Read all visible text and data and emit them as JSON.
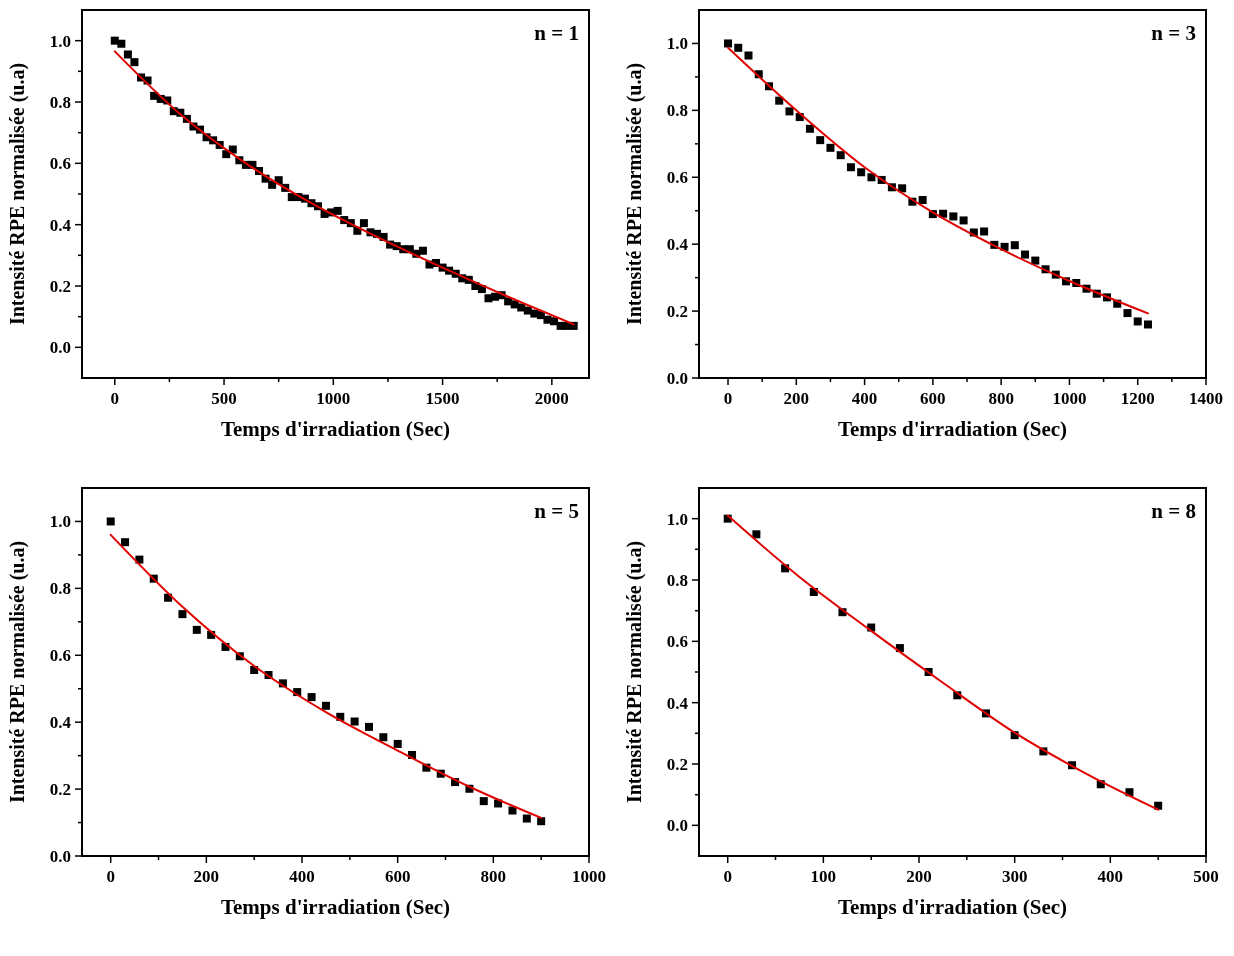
{
  "chart_data": [
    {
      "type": "scatter",
      "xlabel": "Temps d'irradiation (Sec)",
      "ylabel": "Intensité RPE normalisée (u.a)",
      "annotations": [
        "n = 1"
      ],
      "marker": "square",
      "xlim": [
        -150,
        2170
      ],
      "ylim": [
        -0.1,
        1.1
      ],
      "xticks": [
        0,
        {
          "value": 250,
          "label": null
        },
        500,
        {
          "value": 750,
          "label": null
        },
        1000,
        {
          "value": 1250,
          "label": null
        },
        1500,
        {
          "value": 1750,
          "label": null
        },
        2000
      ],
      "yticks": [
        {
          "value": 0,
          "label": "0.0"
        },
        {
          "value": 0.1,
          "label": null
        },
        {
          "value": 0.2,
          "label": "0.2"
        },
        {
          "value": 0.3,
          "label": null
        },
        {
          "value": 0.4,
          "label": "0.4"
        },
        {
          "value": 0.5,
          "label": null
        },
        {
          "value": 0.6,
          "label": "0.6"
        },
        {
          "value": 0.7,
          "label": null
        },
        {
          "value": 0.8,
          "label": "0.8"
        },
        {
          "value": 0.9,
          "label": null
        },
        {
          "value": 1,
          "label": "1.0"
        }
      ],
      "x": [
        0,
        30,
        60,
        90,
        120,
        150,
        180,
        210,
        240,
        270,
        300,
        330,
        360,
        390,
        420,
        450,
        480,
        510,
        540,
        570,
        600,
        630,
        660,
        690,
        720,
        750,
        780,
        810,
        840,
        870,
        900,
        930,
        960,
        990,
        1020,
        1050,
        1080,
        1110,
        1140,
        1170,
        1200,
        1230,
        1260,
        1290,
        1320,
        1350,
        1380,
        1410,
        1440,
        1470,
        1500,
        1530,
        1560,
        1590,
        1620,
        1650,
        1680,
        1710,
        1740,
        1770,
        1800,
        1830,
        1860,
        1890,
        1920,
        1950,
        1980,
        2010,
        2040,
        2070,
        2100
      ],
      "series": [
        {
          "color": "#000000",
          "values": [
            1.0,
            0.99,
            0.955,
            0.93,
            0.88,
            0.87,
            0.82,
            0.81,
            0.805,
            0.77,
            0.765,
            0.745,
            0.72,
            0.71,
            0.685,
            0.675,
            0.66,
            0.63,
            0.645,
            0.61,
            0.595,
            0.595,
            0.575,
            0.55,
            0.53,
            0.545,
            0.52,
            0.49,
            0.49,
            0.485,
            0.47,
            0.46,
            0.435,
            0.44,
            0.445,
            0.415,
            0.405,
            0.38,
            0.405,
            0.375,
            0.37,
            0.36,
            0.335,
            0.33,
            0.32,
            0.32,
            0.305,
            0.315,
            0.27,
            0.275,
            0.26,
            0.25,
            0.24,
            0.225,
            0.22,
            0.2,
            0.19,
            0.16,
            0.165,
            0.17,
            0.15,
            0.14,
            0.13,
            0.12,
            0.11,
            0.105,
            0.09,
            0.085,
            0.07,
            0.07,
            0.07
          ]
        },
        {
          "type": "line",
          "marker": "none",
          "color": "#e00000",
          "x": [
            0,
            300,
            600,
            900,
            1200,
            1500,
            1800,
            2100
          ],
          "values": [
            0.965,
            0.76,
            0.6,
            0.47,
            0.36,
            0.26,
            0.165,
            0.075
          ]
        }
      ]
    },
    {
      "type": "scatter",
      "xlabel": "Temps d'irradiation (Sec)",
      "ylabel": "Intensité RPE normalisée (u.a)",
      "annotations": [
        "n = 3"
      ],
      "marker": "square",
      "xlim": [
        -85,
        1400
      ],
      "ylim": [
        0,
        1.1
      ],
      "xticks": [
        0,
        {
          "value": 100,
          "label": null
        },
        200,
        {
          "value": 300,
          "label": null
        },
        400,
        {
          "value": 500,
          "label": null
        },
        600,
        {
          "value": 700,
          "label": null
        },
        800,
        {
          "value": 900,
          "label": null
        },
        1000,
        {
          "value": 1100,
          "label": null
        },
        1200,
        {
          "value": 1300,
          "label": null
        },
        1400
      ],
      "yticks": [
        {
          "value": 0,
          "label": "0.0"
        },
        {
          "value": 0.1,
          "label": null
        },
        {
          "value": 0.2,
          "label": "0.2"
        },
        {
          "value": 0.3,
          "label": null
        },
        {
          "value": 0.4,
          "label": "0.4"
        },
        {
          "value": 0.5,
          "label": null
        },
        {
          "value": 0.6,
          "label": "0.6"
        },
        {
          "value": 0.7,
          "label": null
        },
        {
          "value": 0.8,
          "label": "0.8"
        },
        {
          "value": 0.9,
          "label": null
        },
        {
          "value": 1,
          "label": "1.0"
        }
      ],
      "x": [
        0,
        30,
        60,
        90,
        120,
        150,
        180,
        210,
        240,
        270,
        300,
        330,
        360,
        390,
        420,
        450,
        480,
        510,
        540,
        570,
        600,
        630,
        660,
        690,
        720,
        750,
        780,
        810,
        840,
        870,
        900,
        930,
        960,
        990,
        1020,
        1050,
        1080,
        1110,
        1140,
        1170,
        1200,
        1230
      ],
      "series": [
        {
          "color": "#000000",
          "values": [
            1.0,
            0.987,
            0.964,
            0.908,
            0.872,
            0.829,
            0.797,
            0.78,
            0.745,
            0.711,
            0.688,
            0.666,
            0.63,
            0.615,
            0.6,
            0.592,
            0.57,
            0.567,
            0.527,
            0.532,
            0.49,
            0.491,
            0.483,
            0.471,
            0.435,
            0.438,
            0.398,
            0.392,
            0.397,
            0.369,
            0.351,
            0.325,
            0.309,
            0.289,
            0.284,
            0.267,
            0.252,
            0.241,
            0.222,
            0.194,
            0.169,
            0.16
          ]
        },
        {
          "type": "line",
          "marker": "none",
          "color": "#e00000",
          "x": [
            0,
            200,
            400,
            600,
            800,
            1000,
            1230
          ],
          "values": [
            0.987,
            0.8,
            0.63,
            0.495,
            0.385,
            0.29,
            0.193
          ]
        }
      ]
    },
    {
      "type": "scatter",
      "xlabel": "Temps d'irradiation (Sec)",
      "ylabel": "Intensité RPE normalisée (u.a)",
      "annotations": [
        "n = 5"
      ],
      "marker": "square",
      "xlim": [
        -60,
        1000
      ],
      "ylim": [
        0,
        1.1
      ],
      "xticks": [
        0,
        {
          "value": 100,
          "label": null
        },
        200,
        {
          "value": 300,
          "label": null
        },
        400,
        {
          "value": 500,
          "label": null
        },
        600,
        {
          "value": 700,
          "label": null
        },
        800,
        {
          "value": 900,
          "label": null
        },
        1000
      ],
      "yticks": [
        {
          "value": 0,
          "label": "0.0"
        },
        {
          "value": 0.1,
          "label": null
        },
        {
          "value": 0.2,
          "label": "0.2"
        },
        {
          "value": 0.3,
          "label": null
        },
        {
          "value": 0.4,
          "label": "0.4"
        },
        {
          "value": 0.5,
          "label": null
        },
        {
          "value": 0.6,
          "label": "0.6"
        },
        {
          "value": 0.7,
          "label": null
        },
        {
          "value": 0.8,
          "label": "0.8"
        },
        {
          "value": 0.9,
          "label": null
        },
        {
          "value": 1,
          "label": "1.0"
        }
      ],
      "x": [
        0,
        30,
        60,
        90,
        120,
        150,
        180,
        210,
        240,
        270,
        300,
        330,
        360,
        390,
        420,
        450,
        480,
        510,
        540,
        570,
        600,
        630,
        660,
        690,
        720,
        750,
        780,
        810,
        840,
        870,
        900
      ],
      "series": [
        {
          "color": "#000000",
          "values": [
            1.0,
            0.938,
            0.886,
            0.829,
            0.772,
            0.723,
            0.676,
            0.661,
            0.625,
            0.597,
            0.556,
            0.541,
            0.516,
            0.49,
            0.475,
            0.449,
            0.416,
            0.402,
            0.386,
            0.355,
            0.335,
            0.302,
            0.264,
            0.246,
            0.221,
            0.201,
            0.164,
            0.157,
            0.136,
            0.112,
            0.104
          ]
        },
        {
          "type": "line",
          "marker": "none",
          "color": "#e00000",
          "x": [
            0,
            150,
            300,
            450,
            600,
            750,
            900
          ],
          "values": [
            0.96,
            0.745,
            0.568,
            0.43,
            0.315,
            0.207,
            0.114
          ]
        }
      ]
    },
    {
      "type": "scatter",
      "xlabel": "Temps d'irradiation (Sec)",
      "ylabel": "Intensité RPE normalisée (u.a)",
      "annotations": [
        "n = 8"
      ],
      "marker": "square",
      "xlim": [
        -30,
        500
      ],
      "ylim": [
        -0.1,
        1.1
      ],
      "xticks": [
        0,
        {
          "value": 50,
          "label": null
        },
        100,
        {
          "value": 150,
          "label": null
        },
        200,
        {
          "value": 250,
          "label": null
        },
        300,
        {
          "value": 350,
          "label": null
        },
        400,
        {
          "value": 450,
          "label": null
        },
        500
      ],
      "yticks": [
        {
          "value": 0,
          "label": "0.0"
        },
        {
          "value": 0.1,
          "label": null
        },
        {
          "value": 0.2,
          "label": "0.2"
        },
        {
          "value": 0.3,
          "label": null
        },
        {
          "value": 0.4,
          "label": "0.4"
        },
        {
          "value": 0.5,
          "label": null
        },
        {
          "value": 0.6,
          "label": "0.6"
        },
        {
          "value": 0.7,
          "label": null
        },
        {
          "value": 0.8,
          "label": "0.8"
        },
        {
          "value": 0.9,
          "label": null
        },
        {
          "value": 1,
          "label": "1.0"
        }
      ],
      "x": [
        0,
        30,
        60,
        90,
        120,
        150,
        180,
        210,
        240,
        270,
        300,
        330,
        360,
        390,
        420,
        450
      ],
      "series": [
        {
          "color": "#000000",
          "values": [
            1.0,
            0.949,
            0.838,
            0.761,
            0.695,
            0.645,
            0.578,
            0.5,
            0.424,
            0.365,
            0.294,
            0.241,
            0.196,
            0.134,
            0.108,
            0.064
          ]
        },
        {
          "type": "line",
          "marker": "none",
          "color": "#e00000",
          "x": [
            0,
            75,
            150,
            225,
            300,
            375,
            450
          ],
          "values": [
            1.01,
            0.81,
            0.634,
            0.465,
            0.302,
            0.168,
            0.051
          ]
        }
      ]
    }
  ]
}
